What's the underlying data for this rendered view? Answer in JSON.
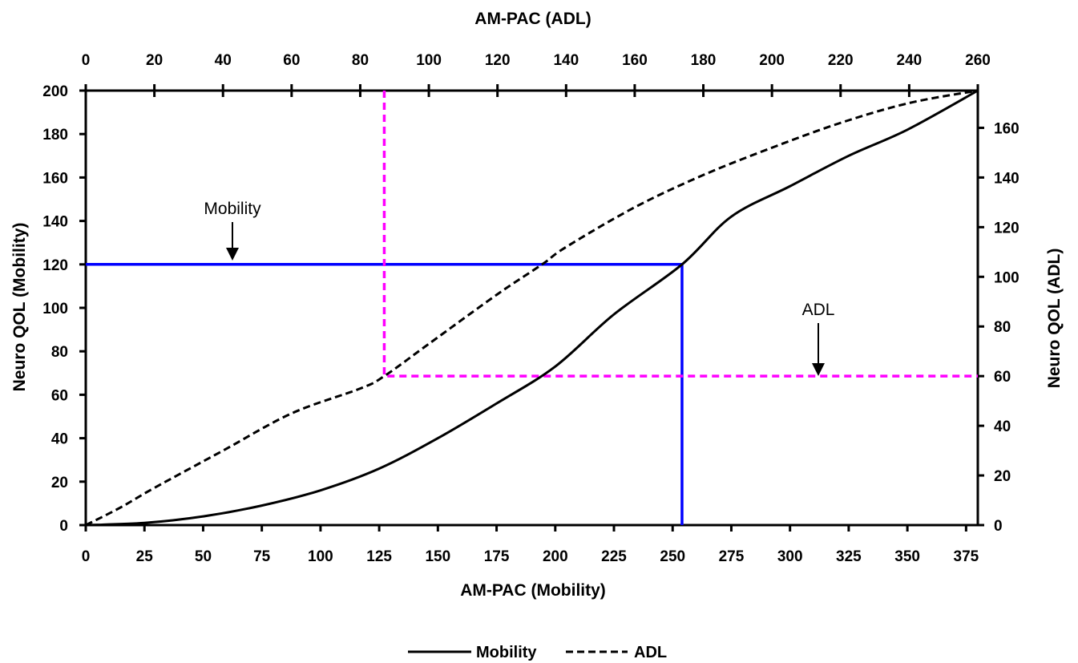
{
  "chart_data": {
    "type": "line",
    "x_bottom": {
      "label": "AM-PAC (Mobility)",
      "range": [
        0,
        380
      ],
      "ticks": [
        0,
        25,
        50,
        75,
        100,
        125,
        150,
        175,
        200,
        225,
        250,
        275,
        300,
        325,
        350,
        375
      ]
    },
    "x_top": {
      "label": "AM-PAC (ADL)",
      "range": [
        0,
        260
      ],
      "ticks": [
        0,
        20,
        40,
        60,
        80,
        100,
        120,
        140,
        160,
        180,
        200,
        220,
        240,
        260
      ]
    },
    "y_left": {
      "label": "Neuro QOL (Mobility)",
      "range": [
        0,
        200
      ],
      "ticks": [
        0,
        20,
        40,
        60,
        80,
        100,
        120,
        140,
        160,
        180,
        200
      ]
    },
    "y_right": {
      "label": "Neuro QOL (ADL)",
      "range": [
        0,
        175
      ],
      "ticks": [
        0,
        20,
        40,
        60,
        80,
        100,
        120,
        140,
        160
      ]
    },
    "grid": false,
    "legend_position": "bottom-center",
    "series": [
      {
        "name": "Mobility",
        "style": "solid",
        "color": "#000000",
        "axes": "bottom-left",
        "x": [
          0,
          25,
          50,
          75,
          100,
          125,
          150,
          175,
          200,
          225,
          254,
          275,
          300,
          325,
          350,
          380
        ],
        "y": [
          0,
          1,
          4,
          9,
          16,
          26,
          40,
          56,
          73,
          97,
          120,
          142,
          156,
          170,
          182,
          200
        ]
      },
      {
        "name": "ADL",
        "style": "dashed",
        "color": "#000000",
        "axes": "top-right",
        "x": [
          0,
          10,
          20,
          40,
          60,
          80,
          87,
          100,
          120,
          133,
          140,
          160,
          180,
          200,
          220,
          240,
          260
        ],
        "y": [
          0,
          7,
          15,
          30,
          45,
          55,
          60,
          73,
          93,
          105,
          112,
          128,
          141,
          152,
          162,
          170,
          175
        ]
      }
    ],
    "reference_lines": [
      {
        "color": "#0000ff",
        "style": "solid",
        "axes": "bottom-left",
        "x_value": 254,
        "y_value": 120
      },
      {
        "color": "#ff00ff",
        "style": "dashed",
        "axes": "top-right",
        "x_value": 87,
        "y_value": 60
      }
    ],
    "annotations": [
      {
        "text": "Mobility",
        "series": "Mobility"
      },
      {
        "text": "ADL",
        "series": "ADL"
      }
    ],
    "legend": [
      {
        "label": "Mobility",
        "style": "solid"
      },
      {
        "label": "ADL",
        "style": "dashed"
      }
    ]
  }
}
